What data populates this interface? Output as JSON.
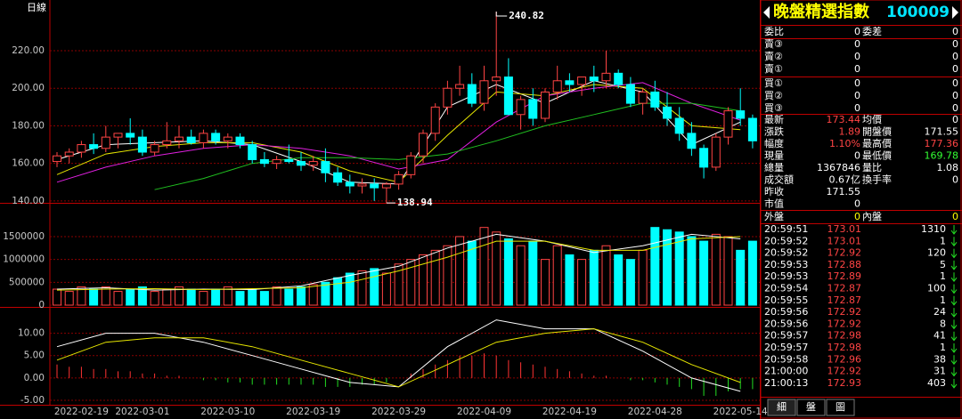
{
  "header": {
    "period": "日線"
  },
  "dates": [
    null,
    null,
    "2022-02-19",
    null,
    null,
    null,
    null,
    "2022-03-01",
    null,
    null,
    null,
    null,
    null,
    null,
    "2022-03-10",
    null,
    null,
    null,
    null,
    null,
    null,
    "2022-03-19",
    null,
    null,
    null,
    null,
    null,
    null,
    "2022-03-29",
    null,
    null,
    null,
    null,
    null,
    null,
    "2022-04-09",
    null,
    null,
    null,
    null,
    null,
    null,
    "2022-04-19",
    null,
    null,
    null,
    null,
    null,
    null,
    "2022-04-28",
    null,
    null,
    null,
    null,
    null,
    null,
    "2022-05-14",
    null
  ],
  "price_chart": {
    "ylim": [
      139,
      247
    ],
    "yticks": [
      {
        "value": 140,
        "label": "140.00"
      },
      {
        "value": 160,
        "label": "160.00"
      },
      {
        "value": 180,
        "label": "180.00"
      },
      {
        "value": 200,
        "label": "200.00"
      },
      {
        "value": 220,
        "label": "220.00"
      }
    ],
    "open": [
      161,
      164,
      166,
      170,
      168,
      174,
      176,
      174,
      166,
      170,
      172,
      174,
      171,
      176,
      172,
      174,
      170,
      162,
      160,
      162,
      161,
      159,
      161,
      155,
      150,
      148,
      149,
      147,
      149,
      154,
      164,
      176,
      190,
      200,
      202,
      192,
      204,
      206,
      186,
      194,
      184,
      198,
      204,
      202,
      206,
      204,
      208,
      202,
      192,
      198,
      190,
      184,
      176,
      168,
      158,
      174,
      188,
      184
    ],
    "high": [
      166,
      168,
      172,
      176,
      180,
      176,
      184,
      178,
      172,
      182,
      180,
      178,
      178,
      178,
      176,
      176,
      172,
      166,
      164,
      170,
      166,
      164,
      168,
      158,
      154,
      152,
      152,
      150,
      156,
      166,
      178,
      192,
      204,
      212,
      208,
      212,
      240.82,
      216,
      196,
      200,
      200,
      212,
      208,
      206,
      212,
      220,
      210,
      206,
      200,
      204,
      198,
      190,
      182,
      170,
      176,
      190,
      200,
      186
    ],
    "low": [
      158,
      160,
      163,
      165,
      166,
      168,
      170,
      164,
      164,
      168,
      168,
      170,
      168,
      170,
      168,
      168,
      160,
      158,
      157,
      160,
      156,
      156,
      150,
      148,
      144,
      144,
      140,
      138.94,
      146,
      152,
      160,
      172,
      186,
      196,
      190,
      188,
      196,
      186,
      178,
      180,
      182,
      194,
      198,
      196,
      198,
      200,
      200,
      190,
      186,
      188,
      180,
      172,
      164,
      152,
      156,
      170,
      180,
      168
    ],
    "close": [
      164,
      166,
      170,
      168,
      174,
      176,
      174,
      166,
      170,
      172,
      174,
      171,
      176,
      172,
      174,
      170,
      162,
      160,
      162,
      161,
      159,
      161,
      155,
      150,
      148,
      149,
      147,
      149,
      154,
      164,
      176,
      190,
      200,
      202,
      192,
      204,
      206,
      186,
      194,
      184,
      198,
      204,
      202,
      206,
      204,
      208,
      202,
      192,
      198,
      190,
      184,
      176,
      168,
      158,
      174,
      188,
      184,
      172
    ],
    "lines": [
      {
        "color": "#ffffff",
        "x": [
          0,
          4,
          8,
          12,
          16,
          20,
          24,
          28,
          32,
          36,
          40,
          44,
          48,
          52,
          56
        ],
        "values": [
          162,
          170,
          171,
          172,
          170,
          161,
          150,
          149,
          190,
          202,
          192,
          204,
          198,
          170,
          182
        ]
      },
      {
        "color": "#e6e600",
        "x": [
          0,
          4,
          8,
          12,
          16,
          20,
          24,
          28,
          32,
          36,
          40,
          44,
          48,
          52,
          56
        ],
        "values": [
          154,
          165,
          169,
          171,
          171,
          166,
          156,
          150,
          175,
          198,
          196,
          202,
          200,
          180,
          178
        ]
      },
      {
        "color": "#e020e0",
        "x": [
          0,
          4,
          8,
          12,
          16,
          20,
          24,
          28,
          32,
          36,
          40,
          44,
          48,
          52,
          56
        ],
        "values": [
          150,
          158,
          164,
          168,
          170,
          168,
          164,
          157,
          162,
          182,
          196,
          200,
          203,
          192,
          183
        ]
      },
      {
        "color": "#20c020",
        "x": [
          0,
          4,
          8,
          12,
          16,
          20,
          24,
          28,
          32,
          36,
          40,
          44,
          48,
          52,
          56
        ],
        "values": [
          null,
          null,
          146,
          152,
          160,
          163,
          163,
          162,
          165,
          172,
          180,
          186,
          192,
          192,
          188
        ]
      }
    ]
  },
  "volume_chart": {
    "ylim": [
      0,
      2200000
    ],
    "yticks": [
      0,
      500000,
      1000000,
      1500000
    ],
    "values": [
      350000,
      300000,
      400000,
      350000,
      400000,
      300000,
      350000,
      400000,
      300000,
      350000,
      400000,
      350000,
      300000,
      350000,
      400000,
      300000,
      350000,
      300000,
      400000,
      350000,
      400000,
      450000,
      500000,
      600000,
      700000,
      750000,
      800000,
      700000,
      900000,
      1000000,
      1100000,
      1200000,
      1300000,
      1500000,
      1400000,
      1700000,
      1600000,
      1450000,
      1300000,
      1400000,
      1000000,
      1300000,
      1100000,
      1000000,
      1200000,
      1300000,
      1100000,
      1000000,
      1200000,
      1700000,
      1650000,
      1600000,
      1500000,
      1400000,
      1550000,
      1500000,
      1200000,
      1400000
    ],
    "lines": [
      {
        "color": "#ffffff",
        "x": [
          0,
          4,
          8,
          12,
          16,
          20,
          24,
          28,
          32,
          36,
          40,
          44,
          48,
          52,
          56
        ],
        "values": [
          350000,
          380000,
          330000,
          350000,
          340000,
          420000,
          650000,
          850000,
          1250000,
          1550000,
          1400000,
          1150000,
          1300000,
          1550000,
          1450000
        ]
      },
      {
        "color": "#e6e600",
        "x": [
          0,
          4,
          8,
          12,
          16,
          20,
          24,
          28,
          32,
          36,
          40,
          44,
          48,
          52,
          56
        ],
        "values": [
          330000,
          350000,
          360000,
          340000,
          360000,
          380000,
          500000,
          750000,
          1050000,
          1400000,
          1400000,
          1200000,
          1200000,
          1450000,
          1500000
        ]
      }
    ]
  },
  "macd_chart": {
    "ylim": [
      -6,
      15.5
    ],
    "yticks": [
      {
        "value": -5,
        "label": "-5.00"
      },
      {
        "value": 0,
        "label": "0.00"
      },
      {
        "value": 5,
        "label": "5.00"
      },
      {
        "value": 10,
        "label": "10.00"
      }
    ],
    "histogram": [
      3,
      2.5,
      2.5,
      2,
      2,
      1.5,
      1.5,
      1,
      1,
      0.5,
      0.5,
      0,
      -0.5,
      -0.5,
      -1,
      -1,
      -1.5,
      -1.5,
      -1.5,
      -1.5,
      -1.5,
      -1.5,
      -2,
      -2,
      -2,
      -1.5,
      -1.5,
      -1,
      0,
      1,
      2,
      3,
      4,
      5,
      5,
      5.5,
      5,
      4,
      3.5,
      3,
      2.5,
      2,
      1.5,
      1,
      0.5,
      0.5,
      0,
      -0.5,
      -0.5,
      -1,
      -1.5,
      -2,
      -2.5,
      -4,
      -4,
      -3,
      -2.5,
      -2.5
    ],
    "lines": [
      {
        "color": "#ffffff",
        "x": [
          0,
          4,
          8,
          12,
          16,
          20,
          24,
          28,
          32,
          36,
          40,
          44,
          48,
          52,
          56
        ],
        "values": [
          7,
          10,
          10,
          8,
          5,
          2,
          -1,
          -2,
          7,
          13,
          11,
          11,
          6,
          0,
          -3
        ]
      },
      {
        "color": "#e6e600",
        "x": [
          0,
          4,
          8,
          12,
          16,
          20,
          24,
          28,
          32,
          36,
          40,
          44,
          48,
          52,
          56
        ],
        "values": [
          4,
          8,
          9,
          9,
          7,
          4,
          1,
          -2,
          3,
          8,
          10,
          11,
          8,
          3,
          -1
        ]
      }
    ]
  },
  "quote": {
    "title": "晚盤精選指數",
    "code": "100009",
    "ratio": [
      "委比",
      0,
      "委差",
      0
    ],
    "asks": [
      [
        "賣③",
        0,
        0
      ],
      [
        "賣②",
        0,
        0
      ],
      [
        "賣①",
        0,
        0
      ]
    ],
    "bids": [
      [
        "買①",
        0,
        0
      ],
      [
        "買②",
        0,
        0
      ],
      [
        "買③",
        0,
        0
      ]
    ],
    "stats": [
      [
        "最新",
        173.44,
        "均價",
        0
      ],
      [
        "漲跌",
        1.89,
        "開盤價",
        171.55
      ],
      [
        "幅度",
        "1.10%",
        "最高價",
        177.36
      ],
      [
        "現量",
        0,
        "最低價",
        169.78
      ],
      [
        "總量",
        1367846,
        "量比",
        1.08
      ],
      [
        "成交額",
        "0.67亿",
        "換手率",
        0
      ],
      [
        "昨收",
        171.55
      ],
      [
        "市值",
        0
      ]
    ],
    "outer": [
      "外盤",
      0,
      "內盤",
      0
    ],
    "trades": [
      [
        "20:59:51",
        173.01,
        1310
      ],
      [
        "20:59:52",
        173.01,
        1
      ],
      [
        "20:59:52",
        172.92,
        120
      ],
      [
        "20:59:53",
        172.88,
        5
      ],
      [
        "20:59:53",
        172.89,
        1
      ],
      [
        "20:59:54",
        172.87,
        100
      ],
      [
        "20:59:55",
        172.87,
        1
      ],
      [
        "20:59:56",
        172.92,
        24
      ],
      [
        "20:59:56",
        172.92,
        8
      ],
      [
        "20:59:57",
        172.98,
        41
      ],
      [
        "20:59:57",
        172.98,
        1
      ],
      [
        "20:59:58",
        172.96,
        38
      ],
      [
        "21:00:00",
        172.92,
        31
      ],
      [
        "21:00:13",
        172.93,
        403
      ]
    ],
    "tabs": [
      "細",
      "盤",
      "圖"
    ]
  }
}
